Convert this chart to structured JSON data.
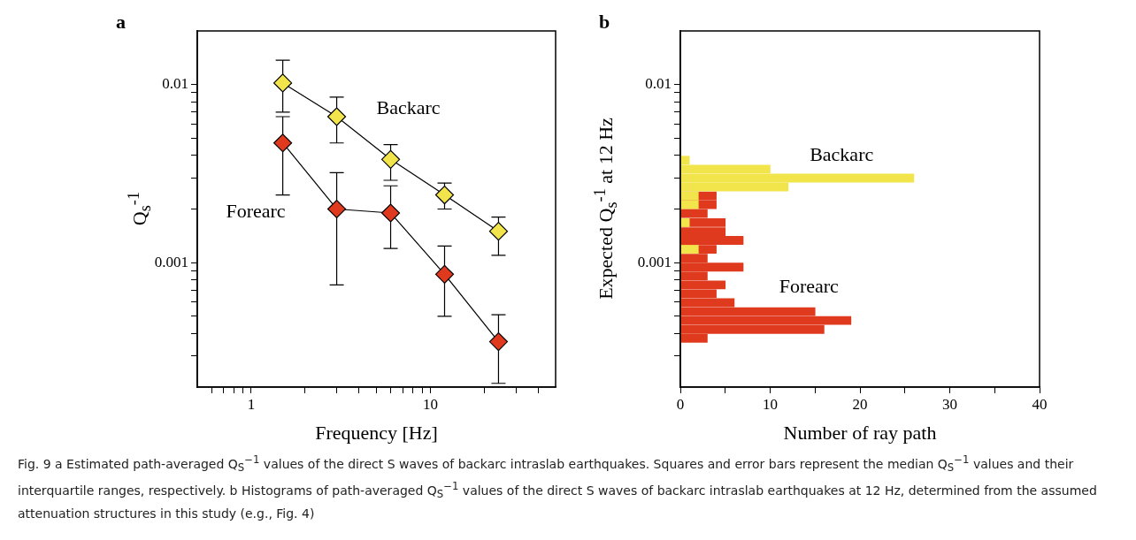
{
  "chart_data": [
    {
      "type": "line",
      "title": "a",
      "xlabel": "Frequency [Hz]",
      "ylabel": "Q$_{s}$$^{-1}$",
      "x": [
        1.5,
        3,
        6,
        12,
        24
      ],
      "series": [
        {
          "name": "Backarc",
          "color": "#f2e54b",
          "values": [
            0.0102,
            0.0066,
            0.0038,
            0.0024,
            0.0015
          ],
          "errors": [
            [
              0.007,
              0.0137
            ],
            [
              0.0047,
              0.0085
            ],
            [
              0.0029,
              0.0046
            ],
            [
              0.002,
              0.0028
            ],
            [
              0.0011,
              0.0018
            ]
          ]
        },
        {
          "name": "Forearc",
          "color": "#e03a1e",
          "values": [
            0.0047,
            0.002,
            0.0019,
            0.00086,
            0.00036
          ],
          "errors": [
            [
              0.0024,
              0.0066
            ],
            [
              0.00075,
              0.0032
            ],
            [
              0.0012,
              0.0027
            ],
            [
              0.0005,
              0.00124
            ],
            [
              0.00021,
              0.00051
            ]
          ]
        }
      ],
      "xlim": [
        0.5,
        50
      ],
      "xticks": [
        {
          "value": 0.6,
          "label": null
        },
        {
          "value": 0.7,
          "label": null
        },
        {
          "value": 0.8,
          "label": null
        },
        {
          "value": 0.9,
          "label": null
        },
        1,
        {
          "value": 2,
          "label": null
        },
        {
          "value": 3,
          "label": null
        },
        {
          "value": 4,
          "label": null
        },
        {
          "value": 5,
          "label": null
        },
        {
          "value": 6,
          "label": null
        },
        {
          "value": 7,
          "label": null
        },
        {
          "value": 8,
          "label": null
        },
        {
          "value": 9,
          "label": null
        },
        10,
        {
          "value": 20,
          "label": null
        },
        {
          "value": 30,
          "label": null
        },
        {
          "value": 40,
          "label": null
        }
      ],
      "ylim": [
        0.0002,
        0.02
      ],
      "yticks": [
        {
          "value": 0.0003,
          "label": null
        },
        {
          "value": 0.0004,
          "label": null
        },
        {
          "value": 0.0005,
          "label": null
        },
        {
          "value": 0.0006,
          "label": null
        },
        {
          "value": 0.0007,
          "label": null
        },
        {
          "value": 0.0008,
          "label": null
        },
        {
          "value": 0.0009,
          "label": null
        },
        0.001,
        {
          "value": 0.002,
          "label": null
        },
        {
          "value": 0.003,
          "label": null
        },
        {
          "value": 0.004,
          "label": null
        },
        {
          "value": 0.005,
          "label": null
        },
        {
          "value": 0.006,
          "label": null
        },
        {
          "value": 0.007,
          "label": null
        },
        {
          "value": 0.008,
          "label": null
        },
        {
          "value": 0.009,
          "label": null
        },
        0.01
      ],
      "log": "xy",
      "marker": "diamond",
      "line_style": "solid",
      "annotations": [
        "Fig. 9  a Estimated path-averaged Q$_{S}$$^{−1}$ values of the direct S waves of backarc intraslab earthquakes. Squares and error bars represent the median Q$_{S}$$^{−1}$ values and their interquartile ranges, respectively. b Histograms of path-averaged Q$_{S}$$^{−1}$ values of the direct S waves of backarc intraslab earthquakes at 12 Hz, determined from the assumed attenuation structures in this study (e.g., Fig. 4)"
      ]
    },
    {
      "type": "histogram",
      "orientation": "horizontal",
      "title": "b",
      "xlabel": "Number of ray path",
      "ylabel": "Expected  Q$_{s}$$^{-1}$  at 12 Hz",
      "bins": [
        0.000355,
        0.000398,
        0.000447,
        0.000501,
        0.000562,
        0.000631,
        0.000708,
        0.000794,
        0.000891,
        0.001,
        0.00112,
        0.00126,
        0.00141,
        0.00158,
        0.00178,
        0.002,
        0.00224,
        0.00251,
        0.00282,
        0.00316,
        0.00355,
        0.00398
      ],
      "series": [
        {
          "name": "Backarc",
          "color": "#f2e54b",
          "values": [
            0,
            0,
            0,
            0,
            0,
            0,
            0,
            0,
            0,
            0,
            2,
            0,
            0,
            1,
            0,
            2,
            2,
            12,
            26,
            10,
            1
          ]
        },
        {
          "name": "Forearc",
          "color": "#e03a1e",
          "values": [
            3,
            16,
            19,
            15,
            6,
            4,
            5,
            3,
            7,
            3,
            4,
            7,
            5,
            5,
            3,
            4,
            4,
            0,
            0,
            0,
            0
          ]
        }
      ],
      "xlim": [
        0,
        40
      ],
      "xticks": [
        0,
        {
          "value": 5,
          "label": null
        },
        10,
        {
          "value": 15,
          "label": null
        },
        20,
        {
          "value": 25,
          "label": null
        },
        30,
        {
          "value": 35,
          "label": null
        },
        40
      ],
      "ylim": [
        0.0002,
        0.02
      ],
      "yticks": [
        {
          "value": 0.0003,
          "label": null
        },
        {
          "value": 0.0004,
          "label": null
        },
        {
          "value": 0.0005,
          "label": null
        },
        {
          "value": 0.0006,
          "label": null
        },
        {
          "value": 0.0007,
          "label": null
        },
        {
          "value": 0.0008,
          "label": null
        },
        {
          "value": 0.0009,
          "label": null
        },
        0.001,
        {
          "value": 0.002,
          "label": null
        },
        {
          "value": 0.003,
          "label": null
        },
        {
          "value": 0.004,
          "label": null
        },
        {
          "value": 0.005,
          "label": null
        },
        {
          "value": 0.006,
          "label": null
        },
        {
          "value": 0.007,
          "label": null
        },
        {
          "value": 0.008,
          "label": null
        },
        {
          "value": 0.009,
          "label": null
        },
        0.01
      ],
      "log": "y"
    }
  ]
}
